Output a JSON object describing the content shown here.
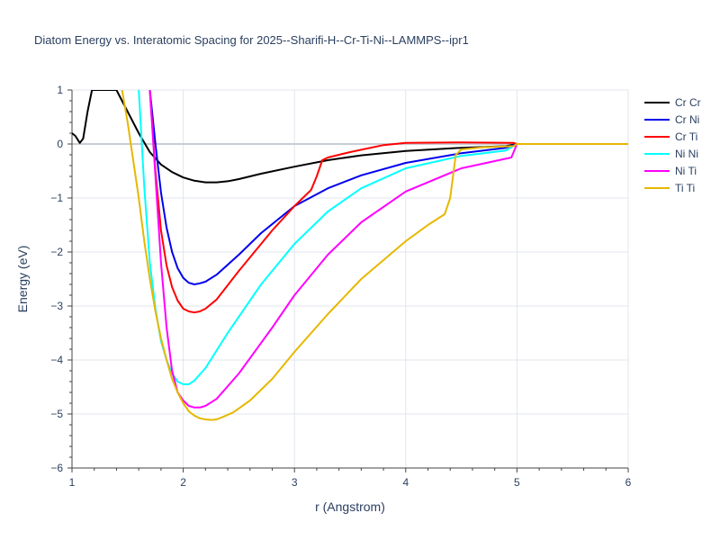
{
  "chart_data": {
    "type": "line",
    "title": "Diatom Energy vs. Interatomic Spacing for 2025--Sharifi-H--Cr-Ti-Ni--LAMMPS--ipr1",
    "xlabel": "r (Angstrom)",
    "ylabel": "Energy (eV)",
    "xlim": [
      1,
      6
    ],
    "ylim": [
      -6,
      1
    ],
    "xticks": [
      "1",
      "2",
      "3",
      "4",
      "5",
      "6"
    ],
    "yticks": [
      "1",
      "0",
      "−1",
      "−2",
      "−3",
      "−4",
      "−5",
      "−6"
    ],
    "grid": true,
    "legend_position": "top-right",
    "series": [
      {
        "name": "Cr Cr",
        "color": "#000000",
        "x": [
          1.0,
          1.03,
          1.07,
          1.1,
          1.14,
          1.18,
          1.4,
          1.5,
          1.6,
          1.7,
          1.8,
          1.9,
          2.0,
          2.1,
          2.2,
          2.25,
          2.3,
          2.4,
          2.5,
          2.7,
          3.0,
          3.3,
          3.6,
          4.0,
          4.5,
          4.9,
          5.0,
          6.0
        ],
        "y": [
          0.2,
          0.15,
          0.02,
          0.1,
          0.6,
          1.0,
          1.0,
          0.6,
          0.2,
          -0.15,
          -0.38,
          -0.52,
          -0.62,
          -0.68,
          -0.71,
          -0.71,
          -0.71,
          -0.69,
          -0.65,
          -0.55,
          -0.42,
          -0.3,
          -0.21,
          -0.13,
          -0.07,
          -0.04,
          0.0,
          0.0
        ]
      },
      {
        "name": "Cr Ni",
        "color": "#0000ee",
        "x": [
          1.7,
          1.75,
          1.8,
          1.85,
          1.9,
          1.95,
          2.0,
          2.05,
          2.1,
          2.15,
          2.2,
          2.3,
          2.5,
          2.7,
          3.0,
          3.3,
          3.6,
          4.0,
          4.5,
          4.9,
          5.0,
          6.0
        ],
        "y": [
          1.0,
          0.0,
          -0.9,
          -1.55,
          -2.0,
          -2.3,
          -2.48,
          -2.57,
          -2.6,
          -2.58,
          -2.55,
          -2.42,
          -2.05,
          -1.65,
          -1.15,
          -0.82,
          -0.58,
          -0.35,
          -0.17,
          -0.07,
          0.0,
          0.0
        ]
      },
      {
        "name": "Cr Ti",
        "color": "#ff0000",
        "x": [
          1.7,
          1.75,
          1.8,
          1.85,
          1.9,
          1.95,
          2.0,
          2.05,
          2.1,
          2.15,
          2.2,
          2.3,
          2.5,
          2.8,
          3.0,
          3.15,
          3.2,
          3.25,
          3.3,
          3.5,
          3.8,
          4.0,
          4.5,
          4.97,
          5.0,
          6.0
        ],
        "y": [
          1.0,
          -0.5,
          -1.6,
          -2.25,
          -2.65,
          -2.9,
          -3.05,
          -3.1,
          -3.12,
          -3.1,
          -3.05,
          -2.88,
          -2.35,
          -1.6,
          -1.15,
          -0.85,
          -0.6,
          -0.3,
          -0.25,
          -0.15,
          -0.02,
          0.02,
          0.03,
          0.02,
          0.0,
          0.0
        ]
      },
      {
        "name": "Ni Ni",
        "color": "#00ffff",
        "x": [
          1.6,
          1.65,
          1.7,
          1.75,
          1.8,
          1.85,
          1.9,
          1.95,
          2.0,
          2.05,
          2.1,
          2.2,
          2.4,
          2.7,
          3.0,
          3.3,
          3.6,
          4.0,
          4.5,
          4.9,
          5.0,
          6.0
        ],
        "y": [
          1.0,
          -0.8,
          -2.2,
          -3.05,
          -3.65,
          -4.0,
          -4.25,
          -4.4,
          -4.45,
          -4.45,
          -4.38,
          -4.15,
          -3.5,
          -2.6,
          -1.85,
          -1.25,
          -0.82,
          -0.45,
          -0.22,
          -0.12,
          0.0,
          0.0
        ]
      },
      {
        "name": "Ni Ti",
        "color": "#ff00ff",
        "x": [
          1.7,
          1.75,
          1.8,
          1.85,
          1.9,
          1.95,
          2.0,
          2.05,
          2.1,
          2.15,
          2.2,
          2.3,
          2.5,
          2.8,
          3.0,
          3.3,
          3.6,
          4.0,
          4.5,
          4.95,
          5.0,
          6.0
        ],
        "y": [
          1.0,
          -0.6,
          -2.2,
          -3.4,
          -4.2,
          -4.6,
          -4.75,
          -4.85,
          -4.88,
          -4.88,
          -4.85,
          -4.72,
          -4.25,
          -3.4,
          -2.8,
          -2.05,
          -1.45,
          -0.88,
          -0.45,
          -0.25,
          0.0,
          0.0
        ]
      },
      {
        "name": "Ti Ti",
        "color": "#e6b800",
        "x": [
          1.45,
          1.5,
          1.55,
          1.6,
          1.65,
          1.7,
          1.75,
          1.8,
          1.85,
          1.9,
          1.95,
          2.0,
          2.05,
          2.1,
          2.15,
          2.2,
          2.25,
          2.3,
          2.35,
          2.45,
          2.6,
          2.8,
          3.0,
          3.3,
          3.6,
          4.0,
          4.2,
          4.35,
          4.4,
          4.45,
          4.5,
          4.7,
          4.97,
          5.0,
          6.0
        ],
        "y": [
          1.0,
          0.4,
          -0.3,
          -1.0,
          -1.8,
          -2.5,
          -3.1,
          -3.6,
          -4.0,
          -4.35,
          -4.6,
          -4.8,
          -4.95,
          -5.03,
          -5.08,
          -5.1,
          -5.11,
          -5.1,
          -5.06,
          -4.97,
          -4.75,
          -4.35,
          -3.85,
          -3.15,
          -2.5,
          -1.8,
          -1.5,
          -1.3,
          -1.0,
          -0.2,
          -0.1,
          -0.06,
          -0.04,
          0.0,
          0.0
        ]
      }
    ]
  }
}
